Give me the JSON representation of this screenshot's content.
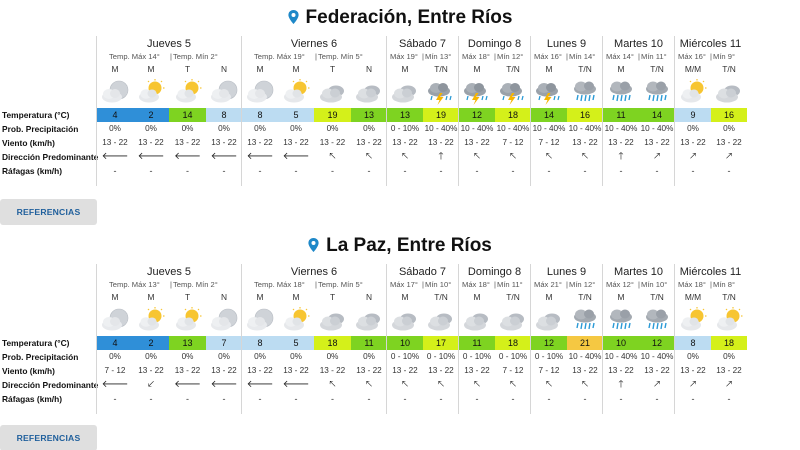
{
  "row_labels": [
    "Temperatura (°C)",
    "Prob. Precipitación",
    "Viento (km/h)",
    "Dirección Predominante",
    "Ráfagas (km/h)"
  ],
  "colors": {
    "pin": "#1e88c8",
    "temp_blue_dark": "#2f8fd8",
    "temp_blue_light": "#bcdcf2",
    "temp_green": "#7ed321",
    "temp_lime": "#d4f01a",
    "temp_yellow": "#f5c842",
    "reference_text": "#1f5f9c"
  },
  "locations": [
    {
      "title": "Federación, Entre Ríos",
      "reference_button": "REFERENCIAS",
      "days": [
        {
          "name": "Jueves 5",
          "max": "Temp. Máx 14°",
          "min": "Temp. Mín 2°",
          "periods": [
            {
              "label": "M",
              "icon": "cloud-moon-icon",
              "temp": "4",
              "temp_color": "#2f8fd8",
              "prob": "0%",
              "wind": "13 - 22",
              "dir": "🡐",
              "gust": "-"
            },
            {
              "label": "M",
              "icon": "partly-sunny-icon",
              "temp": "2",
              "temp_color": "#2f8fd8",
              "prob": "0%",
              "wind": "13 - 22",
              "dir": "🡐",
              "gust": "-"
            },
            {
              "label": "T",
              "icon": "partly-sunny-icon",
              "temp": "14",
              "temp_color": "#7ed321",
              "prob": "0%",
              "wind": "13 - 22",
              "dir": "🡐",
              "gust": "-"
            },
            {
              "label": "N",
              "icon": "cloud-moon-icon",
              "temp": "8",
              "temp_color": "#bcdcf2",
              "prob": "0%",
              "wind": "13 - 22",
              "dir": "🡐",
              "gust": "-"
            }
          ]
        },
        {
          "name": "Viernes 6",
          "max": "Temp. Máx 19°",
          "min": "Temp. Mín 5°",
          "periods": [
            {
              "label": "M",
              "icon": "cloud-moon-icon",
              "temp": "8",
              "temp_color": "#bcdcf2",
              "prob": "0%",
              "wind": "13 - 22",
              "dir": "🡐",
              "gust": "-"
            },
            {
              "label": "M",
              "icon": "partly-sunny-icon",
              "temp": "5",
              "temp_color": "#bcdcf2",
              "prob": "0%",
              "wind": "13 - 22",
              "dir": "🡐",
              "gust": "-"
            },
            {
              "label": "T",
              "icon": "cloudy-icon",
              "temp": "19",
              "temp_color": "#d4f01a",
              "prob": "0%",
              "wind": "13 - 22",
              "dir": "🡔",
              "gust": "-"
            },
            {
              "label": "N",
              "icon": "cloudy-icon",
              "temp": "13",
              "temp_color": "#7ed321",
              "prob": "0%",
              "wind": "13 - 22",
              "dir": "🡔",
              "gust": "-"
            }
          ]
        },
        {
          "name": "Sábado 7",
          "max": "Máx 19°",
          "min": "Mín 13°",
          "periods": [
            {
              "label": "M",
              "icon": "cloudy-icon",
              "temp": "13",
              "temp_color": "#7ed321",
              "prob": "0 - 10%",
              "wind": "13 - 22",
              "dir": "🡔",
              "gust": "-"
            },
            {
              "label": "T/N",
              "icon": "storm-icon",
              "temp": "19",
              "temp_color": "#d4f01a",
              "prob": "10 - 40%",
              "wind": "13 - 22",
              "dir": "🡑",
              "gust": "-"
            }
          ]
        },
        {
          "name": "Domingo 8",
          "max": "Máx 18°",
          "min": "Mín 12°",
          "periods": [
            {
              "label": "M",
              "icon": "storm-icon",
              "temp": "12",
              "temp_color": "#7ed321",
              "prob": "10 - 40%",
              "wind": "13 - 22",
              "dir": "🡔",
              "gust": "-"
            },
            {
              "label": "T/N",
              "icon": "storm-icon",
              "temp": "18",
              "temp_color": "#d4f01a",
              "prob": "10 - 40%",
              "wind": "7 - 12",
              "dir": "🡔",
              "gust": "-"
            }
          ]
        },
        {
          "name": "Lunes 9",
          "max": "Máx 16°",
          "min": "Mín 14°",
          "periods": [
            {
              "label": "M",
              "icon": "storm-icon",
              "temp": "14",
              "temp_color": "#7ed321",
              "prob": "10 - 40%",
              "wind": "7 - 12",
              "dir": "🡔",
              "gust": "-"
            },
            {
              "label": "T/N",
              "icon": "rain-icon",
              "temp": "16",
              "temp_color": "#d4f01a",
              "prob": "10 - 40%",
              "wind": "13 - 22",
              "dir": "🡔",
              "gust": "-"
            }
          ]
        },
        {
          "name": "Martes 10",
          "max": "Máx 14°",
          "min": "Mín 11°",
          "periods": [
            {
              "label": "M",
              "icon": "rain-icon",
              "temp": "11",
              "temp_color": "#7ed321",
              "prob": "10 - 40%",
              "wind": "13 - 22",
              "dir": "🡑",
              "gust": "-"
            },
            {
              "label": "T/N",
              "icon": "rain-icon",
              "temp": "14",
              "temp_color": "#7ed321",
              "prob": "10 - 40%",
              "wind": "13 - 22",
              "dir": "🡕",
              "gust": "-"
            }
          ]
        },
        {
          "name": "Miércoles 11",
          "max": "Máx 16°",
          "min": "Mín 9°",
          "periods": [
            {
              "label": "M/M",
              "icon": "partly-sunny-icon",
              "temp": "9",
              "temp_color": "#bcdcf2",
              "prob": "0%",
              "wind": "13 - 22",
              "dir": "🡕",
              "gust": "-"
            },
            {
              "label": "T/N",
              "icon": "cloudy-icon",
              "temp": "16",
              "temp_color": "#d4f01a",
              "prob": "0%",
              "wind": "13 - 22",
              "dir": "🡕",
              "gust": "-"
            }
          ]
        }
      ]
    },
    {
      "title": "La Paz, Entre Ríos",
      "reference_button": "REFERENCIAS",
      "days": [
        {
          "name": "Jueves 5",
          "max": "Temp. Máx 13°",
          "min": "Temp. Mín 2°",
          "periods": [
            {
              "label": "M",
              "icon": "cloud-moon-icon",
              "temp": "4",
              "temp_color": "#2f8fd8",
              "prob": "0%",
              "wind": "7 - 12",
              "dir": "🡐",
              "gust": "-"
            },
            {
              "label": "M",
              "icon": "partly-sunny-icon",
              "temp": "2",
              "temp_color": "#2f8fd8",
              "prob": "0%",
              "wind": "13 - 22",
              "dir": "🡗",
              "gust": "-"
            },
            {
              "label": "T",
              "icon": "partly-sunny-icon",
              "temp": "13",
              "temp_color": "#7ed321",
              "prob": "0%",
              "wind": "13 - 22",
              "dir": "🡐",
              "gust": "-"
            },
            {
              "label": "N",
              "icon": "cloud-moon-icon",
              "temp": "7",
              "temp_color": "#bcdcf2",
              "prob": "0%",
              "wind": "13 - 22",
              "dir": "🡐",
              "gust": "-"
            }
          ]
        },
        {
          "name": "Viernes 6",
          "max": "Temp. Máx 18°",
          "min": "Temp. Mín 5°",
          "periods": [
            {
              "label": "M",
              "icon": "cloud-moon-icon",
              "temp": "8",
              "temp_color": "#bcdcf2",
              "prob": "0%",
              "wind": "13 - 22",
              "dir": "🡐",
              "gust": "-"
            },
            {
              "label": "M",
              "icon": "partly-sunny-icon",
              "temp": "5",
              "temp_color": "#bcdcf2",
              "prob": "0%",
              "wind": "13 - 22",
              "dir": "🡐",
              "gust": "-"
            },
            {
              "label": "T",
              "icon": "cloudy-icon",
              "temp": "18",
              "temp_color": "#d4f01a",
              "prob": "0%",
              "wind": "13 - 22",
              "dir": "🡔",
              "gust": "-"
            },
            {
              "label": "N",
              "icon": "cloudy-icon",
              "temp": "11",
              "temp_color": "#7ed321",
              "prob": "0%",
              "wind": "13 - 22",
              "dir": "🡔",
              "gust": "-"
            }
          ]
        },
        {
          "name": "Sábado 7",
          "max": "Máx 17°",
          "min": "Mín 10°",
          "periods": [
            {
              "label": "M",
              "icon": "cloudy-icon",
              "temp": "10",
              "temp_color": "#7ed321",
              "prob": "0 - 10%",
              "wind": "13 - 22",
              "dir": "🡔",
              "gust": "-"
            },
            {
              "label": "T/N",
              "icon": "cloudy-icon",
              "temp": "17",
              "temp_color": "#d4f01a",
              "prob": "0 - 10%",
              "wind": "13 - 22",
              "dir": "🡔",
              "gust": "-"
            }
          ]
        },
        {
          "name": "Domingo 8",
          "max": "Máx 18°",
          "min": "Mín 11°",
          "periods": [
            {
              "label": "M",
              "icon": "cloudy-icon",
              "temp": "11",
              "temp_color": "#7ed321",
              "prob": "0 - 10%",
              "wind": "13 - 22",
              "dir": "🡔",
              "gust": "-"
            },
            {
              "label": "T/N",
              "icon": "cloudy-icon",
              "temp": "18",
              "temp_color": "#d4f01a",
              "prob": "0 - 10%",
              "wind": "7 - 12",
              "dir": "🡔",
              "gust": "-"
            }
          ]
        },
        {
          "name": "Lunes 9",
          "max": "Máx 21°",
          "min": "Mín 12°",
          "periods": [
            {
              "label": "M",
              "icon": "cloudy-icon",
              "temp": "12",
              "temp_color": "#7ed321",
              "prob": "0 - 10%",
              "wind": "7 - 12",
              "dir": "🡔",
              "gust": "-"
            },
            {
              "label": "T/N",
              "icon": "rain-icon",
              "temp": "21",
              "temp_color": "#f5c842",
              "prob": "10 - 40%",
              "wind": "13 - 22",
              "dir": "🡔",
              "gust": "-"
            }
          ]
        },
        {
          "name": "Martes 10",
          "max": "Máx 12°",
          "min": "Mín 10°",
          "periods": [
            {
              "label": "M",
              "icon": "rain-icon",
              "temp": "10",
              "temp_color": "#7ed321",
              "prob": "10 - 40%",
              "wind": "13 - 22",
              "dir": "🡑",
              "gust": "-"
            },
            {
              "label": "T/N",
              "icon": "rain-icon",
              "temp": "12",
              "temp_color": "#7ed321",
              "prob": "10 - 40%",
              "wind": "13 - 22",
              "dir": "🡕",
              "gust": "-"
            }
          ]
        },
        {
          "name": "Miércoles 11",
          "max": "Máx 18°",
          "min": "Mín 8°",
          "periods": [
            {
              "label": "M/M",
              "icon": "partly-sunny-icon",
              "temp": "8",
              "temp_color": "#bcdcf2",
              "prob": "0%",
              "wind": "13 - 22",
              "dir": "🡕",
              "gust": "-"
            },
            {
              "label": "T/N",
              "icon": "partly-sunny-icon",
              "temp": "18",
              "temp_color": "#d4f01a",
              "prob": "0%",
              "wind": "13 - 22",
              "dir": "🡕",
              "gust": "-"
            }
          ]
        }
      ]
    }
  ]
}
